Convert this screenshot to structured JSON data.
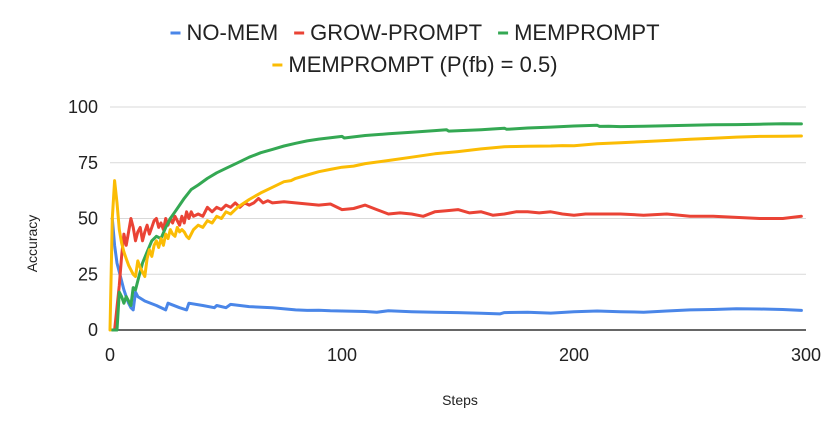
{
  "chart_data": {
    "type": "line",
    "title": "",
    "xlabel": "Steps",
    "ylabel": "Accuracy",
    "xlim": [
      0,
      300
    ],
    "ylim": [
      0,
      100
    ],
    "x_ticks": [
      "0",
      "100",
      "200",
      "300"
    ],
    "y_ticks": [
      "0",
      "25",
      "50",
      "75",
      "100"
    ],
    "grid": "horizontal",
    "legend_position": "top",
    "series": [
      {
        "name": "NO-MEM",
        "color": "#4a86e8",
        "points": [
          [
            1,
            50
          ],
          [
            2,
            38
          ],
          [
            3,
            30
          ],
          [
            4,
            26
          ],
          [
            5,
            22
          ],
          [
            6,
            18
          ],
          [
            7,
            15
          ],
          [
            8,
            12
          ],
          [
            9,
            10
          ],
          [
            10,
            9
          ],
          [
            11,
            17
          ],
          [
            12,
            15
          ],
          [
            15,
            13
          ],
          [
            20,
            11
          ],
          [
            24,
            9
          ],
          [
            25,
            12
          ],
          [
            30,
            10
          ],
          [
            33,
            9
          ],
          [
            34,
            12
          ],
          [
            40,
            11
          ],
          [
            45,
            10
          ],
          [
            46,
            11
          ],
          [
            50,
            10
          ],
          [
            52,
            11.5
          ],
          [
            60,
            10.5
          ],
          [
            70,
            10
          ],
          [
            80,
            9
          ],
          [
            85,
            8.8
          ],
          [
            90,
            8.9
          ],
          [
            95,
            8.6
          ],
          [
            100,
            8.5
          ],
          [
            110,
            8.3
          ],
          [
            115,
            8
          ],
          [
            120,
            8.6
          ],
          [
            130,
            8.2
          ],
          [
            140,
            8
          ],
          [
            150,
            7.8
          ],
          [
            160,
            7.5
          ],
          [
            168,
            7.2
          ],
          [
            170,
            7.8
          ],
          [
            180,
            8
          ],
          [
            190,
            7.6
          ],
          [
            200,
            8.2
          ],
          [
            210,
            8.5
          ],
          [
            220,
            8.2
          ],
          [
            230,
            8
          ],
          [
            240,
            8.5
          ],
          [
            250,
            9
          ],
          [
            260,
            9.2
          ],
          [
            270,
            9.5
          ],
          [
            280,
            9.4
          ],
          [
            290,
            9.2
          ],
          [
            298,
            8.8
          ]
        ]
      },
      {
        "name": "GROW-PROMPT",
        "color": "#ea4335",
        "points": [
          [
            1,
            0
          ],
          [
            2,
            0
          ],
          [
            4,
            20
          ],
          [
            5,
            33
          ],
          [
            6,
            43
          ],
          [
            7,
            38
          ],
          [
            8,
            44
          ],
          [
            9,
            50
          ],
          [
            10,
            46
          ],
          [
            11,
            40
          ],
          [
            12,
            44
          ],
          [
            13,
            46
          ],
          [
            14,
            40
          ],
          [
            15,
            44
          ],
          [
            16,
            47
          ],
          [
            17,
            43
          ],
          [
            18,
            46
          ],
          [
            19,
            49
          ],
          [
            20,
            50
          ],
          [
            21,
            46
          ],
          [
            22,
            48
          ],
          [
            23,
            45
          ],
          [
            24,
            50
          ],
          [
            25,
            47
          ],
          [
            26,
            50
          ],
          [
            27,
            48
          ],
          [
            28,
            51
          ],
          [
            29,
            49
          ],
          [
            30,
            47
          ],
          [
            31,
            51
          ],
          [
            32,
            48
          ],
          [
            33,
            53
          ],
          [
            34,
            50
          ],
          [
            35,
            53
          ],
          [
            36,
            51
          ],
          [
            38,
            52
          ],
          [
            40,
            51
          ],
          [
            42,
            55
          ],
          [
            44,
            53
          ],
          [
            46,
            55
          ],
          [
            48,
            54
          ],
          [
            50,
            56
          ],
          [
            52,
            55
          ],
          [
            54,
            57
          ],
          [
            56,
            55
          ],
          [
            58,
            57
          ],
          [
            60,
            56
          ],
          [
            62,
            57
          ],
          [
            64,
            59
          ],
          [
            66,
            57
          ],
          [
            68,
            58
          ],
          [
            70,
            57
          ],
          [
            75,
            57.5
          ],
          [
            80,
            57
          ],
          [
            85,
            56.5
          ],
          [
            90,
            56
          ],
          [
            95,
            56.5
          ],
          [
            100,
            54
          ],
          [
            105,
            54.5
          ],
          [
            110,
            56
          ],
          [
            115,
            54
          ],
          [
            120,
            52
          ],
          [
            125,
            52.5
          ],
          [
            130,
            52
          ],
          [
            135,
            51
          ],
          [
            140,
            53
          ],
          [
            145,
            53.5
          ],
          [
            150,
            54
          ],
          [
            155,
            52.5
          ],
          [
            160,
            53
          ],
          [
            165,
            51.5
          ],
          [
            170,
            52
          ],
          [
            175,
            53
          ],
          [
            180,
            53
          ],
          [
            185,
            52.5
          ],
          [
            190,
            53
          ],
          [
            195,
            52
          ],
          [
            200,
            51.5
          ],
          [
            205,
            52
          ],
          [
            210,
            52
          ],
          [
            220,
            52
          ],
          [
            230,
            51.5
          ],
          [
            240,
            52
          ],
          [
            250,
            51
          ],
          [
            260,
            51
          ],
          [
            270,
            50.5
          ],
          [
            280,
            50
          ],
          [
            290,
            50
          ],
          [
            298,
            51
          ]
        ]
      },
      {
        "name": "MEMPROMPT",
        "color": "#34a853",
        "points": [
          [
            1,
            0
          ],
          [
            3,
            0
          ],
          [
            4,
            17
          ],
          [
            5,
            15
          ],
          [
            6,
            12
          ],
          [
            7,
            15
          ],
          [
            8,
            13
          ],
          [
            9,
            11
          ],
          [
            10,
            19
          ],
          [
            11,
            18
          ],
          [
            12,
            22
          ],
          [
            14,
            30
          ],
          [
            16,
            35
          ],
          [
            18,
            40
          ],
          [
            20,
            42
          ],
          [
            22,
            41
          ],
          [
            24,
            46
          ],
          [
            26,
            50
          ],
          [
            28,
            53
          ],
          [
            30,
            56
          ],
          [
            32,
            59
          ],
          [
            35,
            63
          ],
          [
            38,
            65
          ],
          [
            42,
            68
          ],
          [
            46,
            70.5
          ],
          [
            50,
            72.5
          ],
          [
            55,
            75
          ],
          [
            60,
            77.5
          ],
          [
            65,
            79.5
          ],
          [
            70,
            81
          ],
          [
            75,
            82.5
          ],
          [
            80,
            83.7
          ],
          [
            85,
            84.8
          ],
          [
            90,
            85.6
          ],
          [
            95,
            86.2
          ],
          [
            100,
            86.8
          ],
          [
            101,
            86.1
          ],
          [
            110,
            87.2
          ],
          [
            120,
            88
          ],
          [
            130,
            88.7
          ],
          [
            140,
            89.4
          ],
          [
            145,
            89.8
          ],
          [
            146,
            89.2
          ],
          [
            160,
            89.8
          ],
          [
            170,
            90.5
          ],
          [
            171,
            90
          ],
          [
            180,
            90.6
          ],
          [
            190,
            91
          ],
          [
            200,
            91.5
          ],
          [
            210,
            91.8
          ],
          [
            211,
            91.3
          ],
          [
            215,
            91.4
          ],
          [
            220,
            91.2
          ],
          [
            230,
            91.4
          ],
          [
            240,
            91.6
          ],
          [
            250,
            91.8
          ],
          [
            260,
            92
          ],
          [
            270,
            92.1
          ],
          [
            280,
            92.3
          ],
          [
            290,
            92.5
          ],
          [
            298,
            92.4
          ]
        ]
      },
      {
        "name": "MEMPROMPT (P(fb) = 0.5)",
        "color": "#fbbc04",
        "points": [
          [
            0,
            0
          ],
          [
            1,
            50
          ],
          [
            2,
            67
          ],
          [
            3,
            57
          ],
          [
            4,
            45
          ],
          [
            5,
            39
          ],
          [
            6,
            35
          ],
          [
            7,
            32
          ],
          [
            8,
            29
          ],
          [
            9,
            27
          ],
          [
            10,
            25
          ],
          [
            11,
            24
          ],
          [
            12,
            31
          ],
          [
            13,
            28
          ],
          [
            14,
            26
          ],
          [
            15,
            24
          ],
          [
            16,
            32
          ],
          [
            17,
            36
          ],
          [
            18,
            33
          ],
          [
            19,
            38
          ],
          [
            20,
            40
          ],
          [
            21,
            37
          ],
          [
            22,
            41
          ],
          [
            23,
            38
          ],
          [
            24,
            43
          ],
          [
            25,
            41
          ],
          [
            26,
            45
          ],
          [
            27,
            43
          ],
          [
            28,
            42
          ],
          [
            29,
            46
          ],
          [
            30,
            44
          ],
          [
            31,
            45
          ],
          [
            32,
            44
          ],
          [
            33,
            42
          ],
          [
            34,
            41
          ],
          [
            36,
            45
          ],
          [
            38,
            47
          ],
          [
            40,
            46
          ],
          [
            42,
            49
          ],
          [
            44,
            48
          ],
          [
            46,
            51
          ],
          [
            48,
            50
          ],
          [
            50,
            53
          ],
          [
            52,
            52
          ],
          [
            55,
            55
          ],
          [
            60,
            58.5
          ],
          [
            65,
            61.5
          ],
          [
            70,
            64
          ],
          [
            75,
            66.5
          ],
          [
            78,
            67
          ],
          [
            80,
            68
          ],
          [
            85,
            69.5
          ],
          [
            90,
            71
          ],
          [
            95,
            72
          ],
          [
            100,
            73
          ],
          [
            105,
            73.5
          ],
          [
            110,
            74.6
          ],
          [
            120,
            76
          ],
          [
            130,
            77.5
          ],
          [
            140,
            79
          ],
          [
            150,
            80
          ],
          [
            160,
            81.2
          ],
          [
            170,
            82.2
          ],
          [
            175,
            82.3
          ],
          [
            180,
            82.4
          ],
          [
            190,
            82.5
          ],
          [
            195,
            82.7
          ],
          [
            200,
            82.6
          ],
          [
            210,
            83.5
          ],
          [
            220,
            84
          ],
          [
            230,
            84.5
          ],
          [
            240,
            85
          ],
          [
            250,
            85.5
          ],
          [
            260,
            86
          ],
          [
            270,
            86.5
          ],
          [
            280,
            86.8
          ],
          [
            290,
            86.9
          ],
          [
            298,
            87
          ]
        ]
      }
    ]
  }
}
